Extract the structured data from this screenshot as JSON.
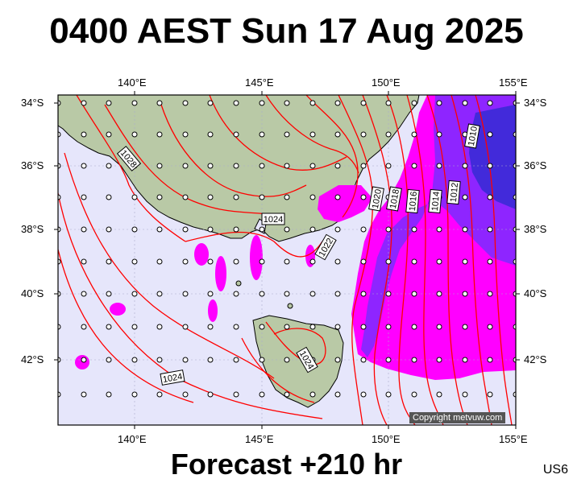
{
  "title": "0400 AEST Sun 17 Aug 2025",
  "forecast": "Forecast +210 hr",
  "region_code": "US6",
  "copyright": "Copyright metvuw.com",
  "lon_labels": [
    "140°E",
    "145°E",
    "150°E",
    "155°E"
  ],
  "lat_labels": [
    "34°S",
    "36°S",
    "38°S",
    "40°S",
    "42°S"
  ],
  "isobar_labels": [
    "1028",
    "1024",
    "1022",
    "1024",
    "1024",
    "1020",
    "1018",
    "1016",
    "1014",
    "1012",
    "1010"
  ],
  "colors": {
    "ocean": "#e6e6fb",
    "land": "#b9c9a6",
    "isobar": "#ff0000",
    "rain_light": "#ff00ff",
    "rain_heavy": "#7a2bff",
    "rain_very_heavy": "#3a2bd6"
  }
}
